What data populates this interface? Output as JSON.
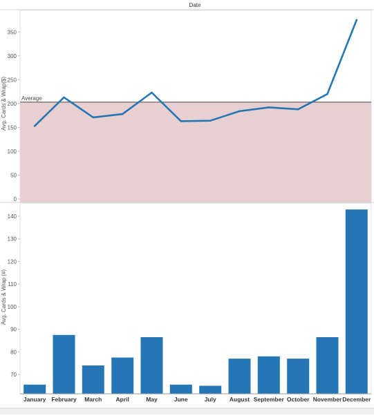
{
  "header": {
    "title": "Date"
  },
  "chart_data": [
    {
      "type": "line",
      "ylabel": "Avg. Cards & Wrap($)",
      "ylim": [
        0,
        375
      ],
      "yticks": [
        0,
        50,
        100,
        150,
        200,
        250,
        300,
        350
      ],
      "categories": [
        "January",
        "February",
        "March",
        "April",
        "May",
        "June",
        "July",
        "August",
        "September",
        "October",
        "November",
        "December"
      ],
      "series": [
        {
          "values": [
            153,
            213,
            171,
            178,
            223,
            163,
            164,
            184,
            192,
            188,
            220,
            375
          ]
        }
      ],
      "reference_line": {
        "label": "Average",
        "value": 203,
        "band": [
          0,
          203
        ]
      },
      "colors": {
        "line": "#2477b3",
        "band": "#e8cfd1",
        "reference": "#555555"
      },
      "grid": false
    },
    {
      "type": "bar",
      "ylabel": "Avg. Cards & Wrap (#)",
      "ylim": [
        62,
        145
      ],
      "yticks": [
        70,
        80,
        90,
        100,
        110,
        120,
        130,
        140
      ],
      "categories": [
        "January",
        "February",
        "March",
        "April",
        "May",
        "June",
        "July",
        "August",
        "September",
        "October",
        "November",
        "December"
      ],
      "values": [
        65.5,
        87.5,
        74,
        77.5,
        86.5,
        65.5,
        65,
        77,
        78,
        77,
        86.5,
        143
      ],
      "colors": {
        "bar": "#2476b4"
      },
      "grid": false
    }
  ]
}
